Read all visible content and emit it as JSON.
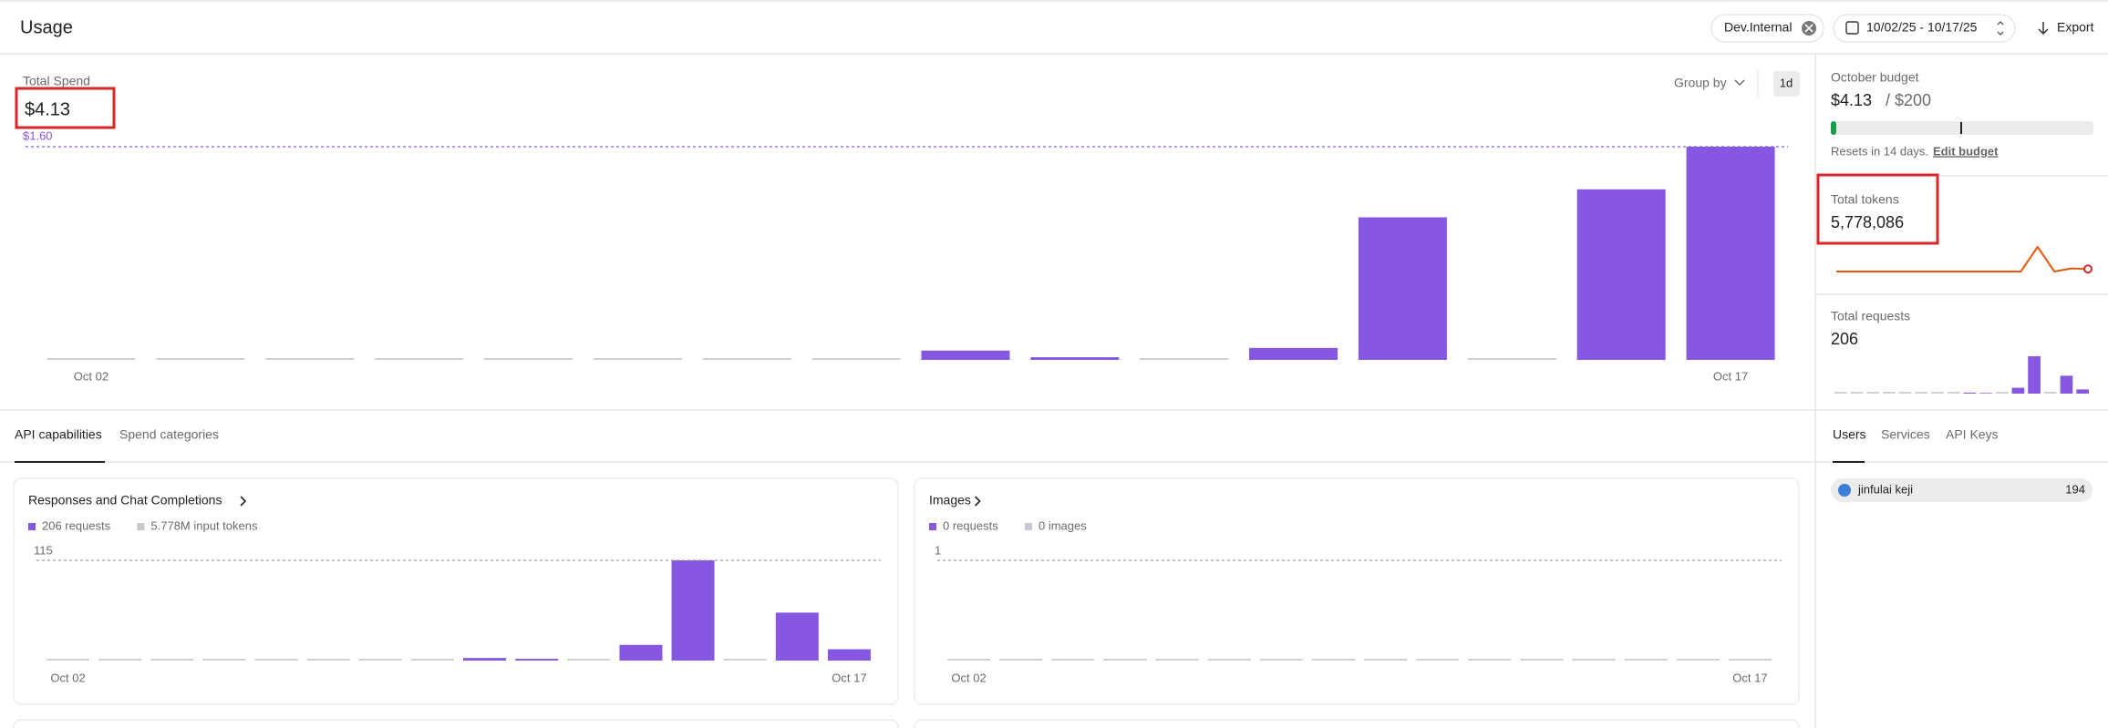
{
  "header": {
    "title": "Usage",
    "filter": "Dev.Internal",
    "date_range": "10/02/25 - 10/17/25",
    "export": "Export"
  },
  "spend": {
    "label": "Total Spend",
    "total": "$4.13",
    "group_by": "Group by",
    "interval": "1d",
    "chart": {
      "type": "bar",
      "color": "#8657e0",
      "categories": [
        "Oct 02",
        null,
        null,
        null,
        null,
        null,
        null,
        null,
        null,
        null,
        null,
        null,
        null,
        null,
        null,
        "Oct 17"
      ],
      "values": [
        0,
        0,
        0,
        0,
        0,
        0,
        0,
        0,
        0.07,
        0.02,
        0,
        0.09,
        1.07,
        0,
        1.28,
        1.6
      ],
      "ylim": [
        0,
        1.6
      ],
      "reference": {
        "value": 1.6,
        "label": "$1.60"
      }
    }
  },
  "tabs": [
    "API capabilities",
    "Spend categories"
  ],
  "cards": [
    {
      "title": "Responses and Chat Completions",
      "legend": [
        "206 requests",
        "5.778M input tokens"
      ],
      "chart": {
        "type": "bar",
        "color": "#8657e0",
        "categories": [
          "Oct 02",
          null,
          null,
          null,
          null,
          null,
          null,
          null,
          null,
          null,
          null,
          null,
          null,
          null,
          null,
          "Oct 17"
        ],
        "values": [
          0,
          0,
          0,
          0,
          0,
          0,
          0,
          0,
          3,
          2,
          0,
          18,
          115,
          0,
          55,
          13
        ],
        "ylim": [
          0,
          115
        ],
        "yticks": [
          115
        ]
      }
    },
    {
      "title": "Images",
      "legend": [
        "0 requests",
        "0 images"
      ],
      "chart": {
        "type": "bar",
        "color": "#8657e0",
        "categories": [
          "Oct 02",
          null,
          null,
          null,
          null,
          null,
          null,
          null,
          null,
          null,
          null,
          null,
          null,
          null,
          null,
          "Oct 17"
        ],
        "values": [
          0,
          0,
          0,
          0,
          0,
          0,
          0,
          0,
          0,
          0,
          0,
          0,
          0,
          0,
          0,
          0
        ],
        "ylim": [
          0,
          1
        ],
        "yticks": [
          1
        ]
      }
    }
  ],
  "budget": {
    "label": "October budget",
    "spent": "$4.13",
    "limit": "/ $200",
    "note": "Resets in 14 days.",
    "link": "Edit budget",
    "progress": {
      "value": 4.13,
      "max": 200,
      "color": "#1a9e4b"
    }
  },
  "tokens": {
    "label": "Total tokens",
    "total": "5,778,086",
    "sparkline": {
      "type": "line",
      "color": "#e8590c",
      "values": [
        0,
        0,
        0,
        0,
        0,
        0,
        0,
        0,
        0,
        0,
        0,
        0,
        4700000,
        0,
        600000,
        478086
      ]
    }
  },
  "requests": {
    "label": "Total requests",
    "total": "206",
    "sparkline": {
      "type": "bar",
      "color": "#8657e0",
      "values": [
        0,
        0,
        0,
        0,
        0,
        0,
        0,
        0,
        3,
        2,
        0,
        18,
        115,
        0,
        55,
        13
      ]
    }
  },
  "side_tabs": [
    "Users",
    "Services",
    "API Keys"
  ],
  "users": [
    {
      "name": "jinfulai keji",
      "value": "194"
    }
  ]
}
